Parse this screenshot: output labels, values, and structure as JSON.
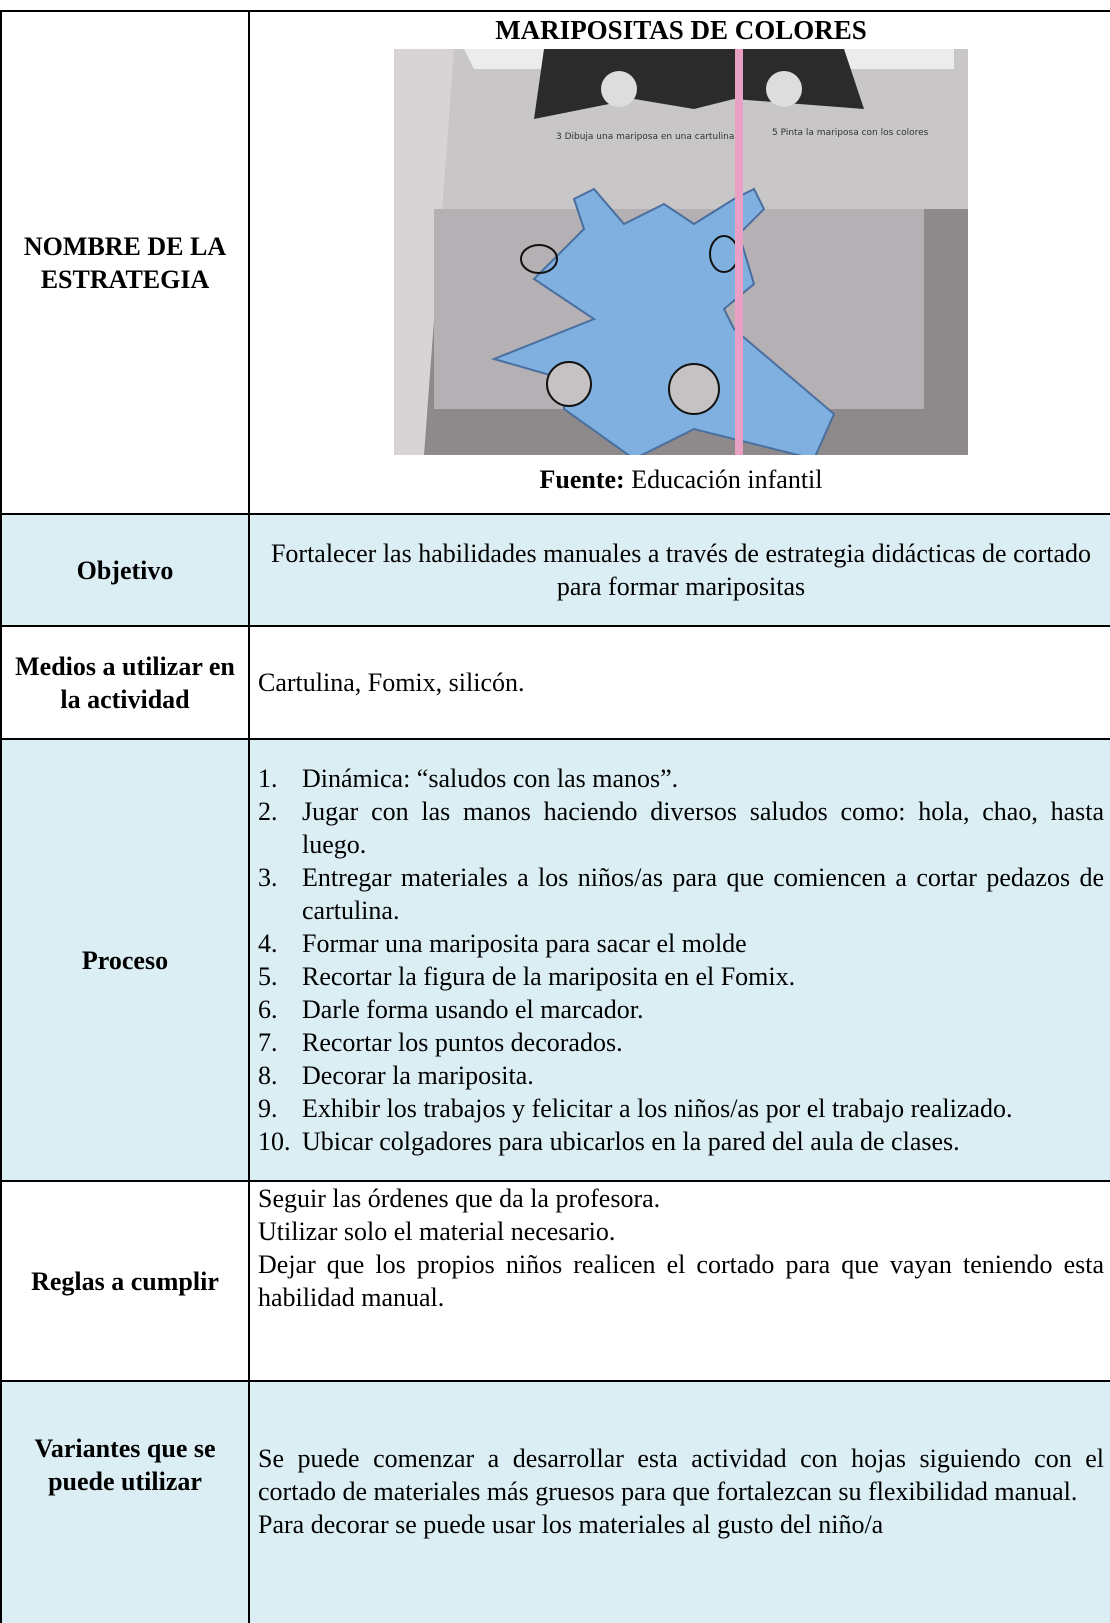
{
  "rows": [
    {
      "label": "NOMBRE DE LA ESTRATEGIA",
      "title": "MARIPOSITAS DE COLORES",
      "photo_texts": [
        "3 Dibuja una mariposa en una cartulina",
        "5 Pinta la mariposa con los colores"
      ],
      "caption_label": "Fuente:",
      "caption_text": "Educación infantil"
    },
    {
      "label": "Objetivo",
      "content": "Fortalecer las habilidades manuales a través de estrategia didácticas de cortado para formar maripositas"
    },
    {
      "label": "Medios a utilizar en la actividad",
      "content": "Cartulina, Fomix, silicón."
    },
    {
      "label": "Proceso",
      "items": [
        {
          "number": "1.",
          "text": "Dinámica: “saludos con las manos”."
        },
        {
          "number": "2.",
          "text": "Jugar con las manos haciendo diversos saludos como: hola, chao, hasta luego."
        },
        {
          "number": "3.",
          "text": "Entregar materiales a los niños/as para que comiencen a cortar pedazos de cartulina."
        },
        {
          "number": "4.",
          "text": "Formar una mariposita para sacar el molde"
        },
        {
          "number": "5.",
          "text": "Recortar la figura de la mariposita en el Fomix."
        },
        {
          "number": "6.",
          "text": "Darle forma usando el marcador."
        },
        {
          "number": "7.",
          "text": "Recortar los puntos decorados."
        },
        {
          "number": "8.",
          "text": "Decorar la mariposita."
        },
        {
          "number": "9.",
          "text": "Exhibir los trabajos y felicitar a los niños/as por el trabajo realizado."
        },
        {
          "number": "10.",
          "text": "Ubicar colgadores para ubicarlos en la pared del aula de clases."
        }
      ]
    },
    {
      "label": "Reglas a cumplir",
      "lines": [
        "Seguir las órdenes que da la profesora.",
        "Utilizar solo el material necesario.",
        "Dejar que los propios niños realicen el cortado para que vayan teniendo esta habilidad manual."
      ]
    },
    {
      "label": "Variantes que se puede utilizar",
      "lines": [
        "Se puede comenzar a desarrollar esta actividad con hojas siguiendo con el cortado de materiales más gruesos para que fortalezcan su flexibilidad manual.",
        "Para decorar se puede usar los materiales al gusto del niño/a"
      ]
    }
  ]
}
